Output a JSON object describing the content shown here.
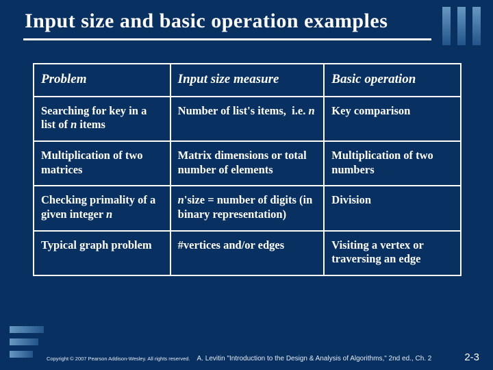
{
  "title": "Input size and basic operation examples",
  "table": {
    "headers": [
      "Problem",
      "Input size measure",
      "Basic operation"
    ],
    "rows": [
      {
        "c0": "Searching for key in a list of <span class='italic-n'>n</span> items",
        "c1": "Number of list's items,&nbsp;&nbsp;i.e. <span class='italic-n'>n</span>",
        "c2": "Key comparison"
      },
      {
        "c0": "Multiplication of two matrices",
        "c1": "Matrix dimensions or total number of elements",
        "c2": "Multiplication of two numbers"
      },
      {
        "c0": "Checking primality of a given integer <span class='italic-n'>n</span>",
        "c1": "<span class='italic-n'>n</span>'size = number of digits (in binary representation)",
        "c2": "Division"
      },
      {
        "c0": "Typical graph problem",
        "c1": "#vertices and/or edges",
        "c2": "Visiting a vertex or traversing an edge"
      }
    ]
  },
  "footer": {
    "copyright": "Copyright © 2007 Pearson Addison-Wesley. All rights reserved.",
    "attribution": "A. Levitin \"Introduction to the Design & Analysis of Algorithms,\" 2nd ed., Ch. 2",
    "pagenum": "2-3"
  },
  "colors": {
    "background": "#083060",
    "text": "#ffffff"
  }
}
